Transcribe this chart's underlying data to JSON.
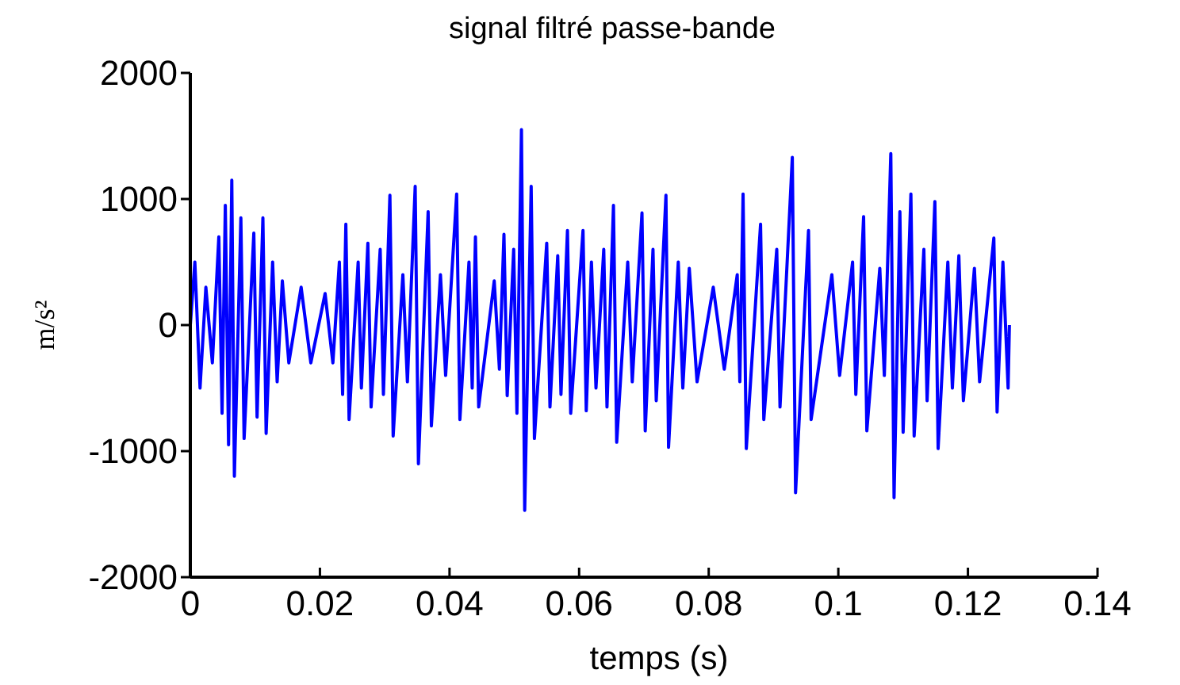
{
  "chart_data": {
    "type": "line",
    "title": "signal filtré passe-bande",
    "xlabel": "temps (s)",
    "ylabel": "m/s²",
    "xlim": [
      0,
      0.14
    ],
    "xticks": [
      0,
      0.02,
      0.04,
      0.06,
      0.08,
      0.1,
      0.12,
      0.14
    ],
    "ylim": [
      -2000,
      2000
    ],
    "yticks": [
      -2000,
      -1000,
      0,
      1000,
      2000
    ],
    "grid": false,
    "line_style": "solid",
    "series": [
      {
        "color": "#0000ff",
        "x": [
          0,
          0.0007,
          0.0015,
          0.0024,
          0.0034,
          0.0044,
          0.0049,
          0.0054,
          0.0059,
          0.0064,
          0.0068,
          0.0078,
          0.0083,
          0.0098,
          0.0103,
          0.0112,
          0.0117,
          0.0127,
          0.0134,
          0.0142,
          0.0152,
          0.0171,
          0.0186,
          0.0208,
          0.022,
          0.023,
          0.0235,
          0.024,
          0.0245,
          0.0259,
          0.0264,
          0.0274,
          0.0279,
          0.0293,
          0.0298,
          0.0308,
          0.0313,
          0.0328,
          0.0335,
          0.0347,
          0.0352,
          0.0367,
          0.0372,
          0.0386,
          0.0394,
          0.0411,
          0.0416,
          0.043,
          0.0435,
          0.044,
          0.0445,
          0.0469,
          0.0477,
          0.0484,
          0.0489,
          0.0499,
          0.0504,
          0.0511,
          0.0516,
          0.0526,
          0.0531,
          0.055,
          0.0555,
          0.0567,
          0.0572,
          0.0582,
          0.0587,
          0.0606,
          0.0611,
          0.0619,
          0.0626,
          0.0638,
          0.0643,
          0.0653,
          0.0658,
          0.0675,
          0.0682,
          0.0697,
          0.0702,
          0.0714,
          0.0719,
          0.0734,
          0.0738,
          0.0753,
          0.076,
          0.077,
          0.0782,
          0.0807,
          0.0824,
          0.0844,
          0.0848,
          0.0853,
          0.0858,
          0.088,
          0.0885,
          0.0905,
          0.091,
          0.0929,
          0.0934,
          0.0954,
          0.0958,
          0.099,
          0.1002,
          0.1022,
          0.1027,
          0.1039,
          0.1044,
          0.1064,
          0.1071,
          0.1081,
          0.1086,
          0.1095,
          0.11,
          0.1112,
          0.1117,
          0.1132,
          0.1137,
          0.1149,
          0.1154,
          0.1169,
          0.1176,
          0.1186,
          0.1193,
          0.121,
          0.1218,
          0.124,
          0.1245,
          0.1254,
          0.1262,
          0.1264
        ],
        "values": [
          0,
          500,
          -500,
          300,
          -300,
          700,
          -700,
          950,
          -950,
          1150,
          -1200,
          850,
          -900,
          730,
          -730,
          850,
          -860,
          500,
          -450,
          350,
          -300,
          300,
          -300,
          250,
          -300,
          500,
          -550,
          800,
          -750,
          500,
          -500,
          650,
          -650,
          600,
          -550,
          1030,
          -880,
          400,
          -450,
          1100,
          -1100,
          900,
          -800,
          400,
          -400,
          1040,
          -750,
          500,
          -500,
          700,
          -650,
          350,
          -350,
          720,
          -560,
          600,
          -700,
          1550,
          -1470,
          1100,
          -900,
          650,
          -650,
          550,
          -550,
          750,
          -700,
          750,
          -680,
          500,
          -500,
          600,
          -650,
          950,
          -930,
          500,
          -450,
          890,
          -840,
          600,
          -600,
          1030,
          -970,
          500,
          -500,
          450,
          -450,
          300,
          -350,
          400,
          -450,
          1040,
          -980,
          800,
          -750,
          600,
          -650,
          1330,
          -1330,
          750,
          -750,
          400,
          -400,
          500,
          -550,
          860,
          -840,
          450,
          -400,
          1360,
          -1370,
          900,
          -850,
          1040,
          -880,
          600,
          -600,
          980,
          -980,
          500,
          -500,
          550,
          -600,
          450,
          -450,
          690,
          -690,
          500,
          -500,
          0
        ]
      }
    ]
  }
}
